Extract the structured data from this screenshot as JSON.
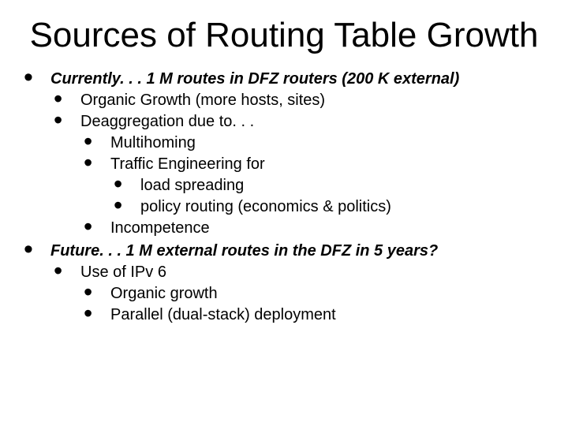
{
  "title": "Sources of Routing Table Growth",
  "bullets": {
    "b1": "Currently. . . 1 M routes in DFZ routers (200 K external)",
    "b1_1": "Organic Growth (more hosts, sites)",
    "b1_2": "Deaggregation due to. . .",
    "b1_2_1": "Multihoming",
    "b1_2_2": "Traffic Engineering for",
    "b1_2_2_1": "load spreading",
    "b1_2_2_2": "policy routing (economics & politics)",
    "b1_2_3": "Incompetence",
    "b2": "Future. . . 1 M external routes in the DFZ in 5 years?",
    "b2_1": "Use of IPv 6",
    "b2_1_1": "Organic growth",
    "b2_1_2": "Parallel (dual-stack) deployment"
  },
  "style": {
    "background_color": "#ffffff",
    "text_color": "#000000",
    "title_fontsize": 44,
    "body_fontsize": 20,
    "bullet_glyph": "•",
    "font_family": "Arial"
  }
}
